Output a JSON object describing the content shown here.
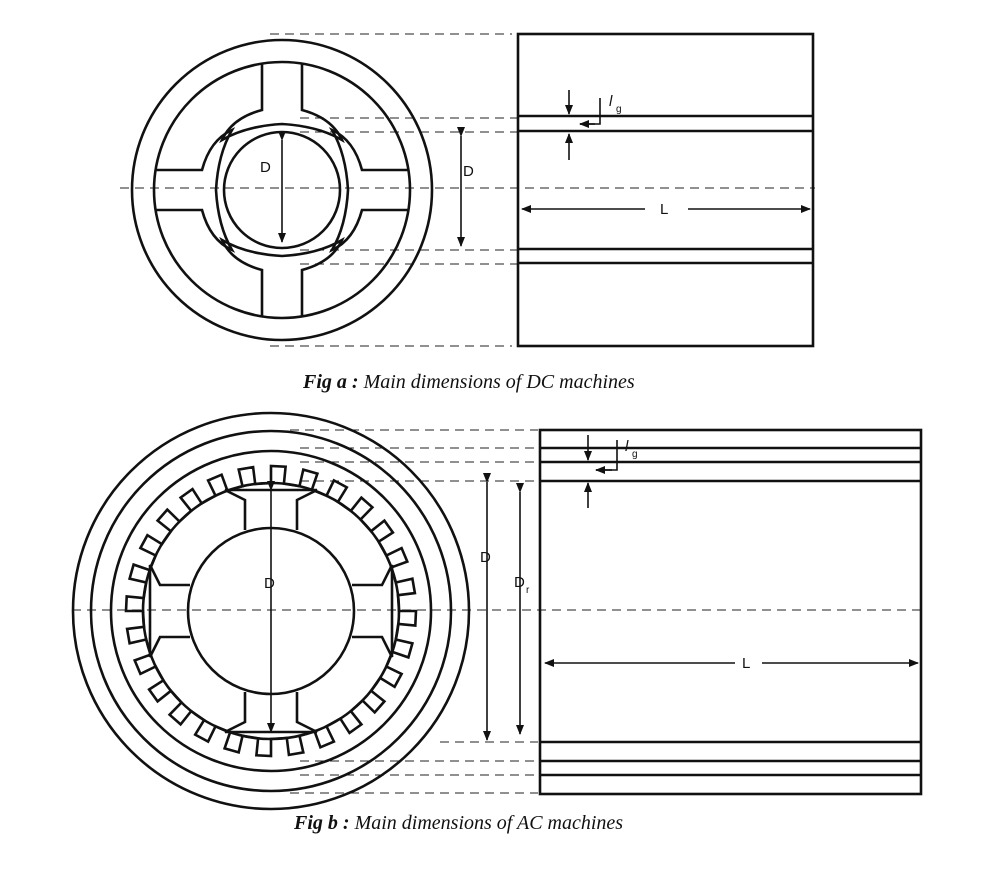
{
  "fig_a": {
    "caption_bold": "Fig a :",
    "caption_text": " Main dimensions of DC machines",
    "label_d_inner": "D",
    "label_d_side": "D",
    "label_l": "L",
    "label_lg": "l",
    "label_lg_sub": "g"
  },
  "fig_b": {
    "caption_bold": "Fig b :",
    "caption_text": " Main dimensions of AC machines",
    "label_d_inner": "D",
    "label_d_side": "D",
    "label_dr": "D",
    "label_dr_sub": "r",
    "label_l": "L",
    "label_lg": "l",
    "label_lg_sub": "g"
  }
}
